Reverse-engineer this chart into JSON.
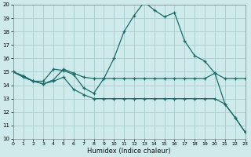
{
  "xlabel": "Humidex (Indice chaleur)",
  "xlim": [
    0,
    23
  ],
  "ylim": [
    10,
    20
  ],
  "yticks": [
    10,
    11,
    12,
    13,
    14,
    15,
    16,
    17,
    18,
    19,
    20
  ],
  "xticks": [
    0,
    1,
    2,
    3,
    4,
    5,
    6,
    7,
    8,
    9,
    10,
    11,
    12,
    13,
    14,
    15,
    16,
    17,
    18,
    19,
    20,
    21,
    22,
    23
  ],
  "background_color": "#ceeaea",
  "grid_color": "#aacccc",
  "line_color": "#1a6b6b",
  "line1_y": [
    15.0,
    14.6,
    14.3,
    14.3,
    15.2,
    15.1,
    14.8,
    13.8,
    13.4,
    14.5,
    16.0,
    18.0,
    19.2,
    20.2,
    19.6,
    19.1,
    19.4,
    17.3,
    16.2,
    15.8,
    14.9,
    12.6,
    11.6,
    10.5
  ],
  "line2_y": [
    15.0,
    14.7,
    14.3,
    14.1,
    14.4,
    15.2,
    14.9,
    14.6,
    14.5,
    14.5,
    14.5,
    14.5,
    14.5,
    14.5,
    14.5,
    14.5,
    14.5,
    14.5,
    14.5,
    14.5,
    14.9,
    14.5,
    14.5,
    14.5
  ],
  "line3_y": [
    15.0,
    14.7,
    14.3,
    14.1,
    14.3,
    14.6,
    13.7,
    13.3,
    13.0,
    13.0,
    13.0,
    13.0,
    13.0,
    13.0,
    13.0,
    13.0,
    13.0,
    13.0,
    13.0,
    13.0,
    13.0,
    12.6,
    11.6,
    10.5
  ]
}
